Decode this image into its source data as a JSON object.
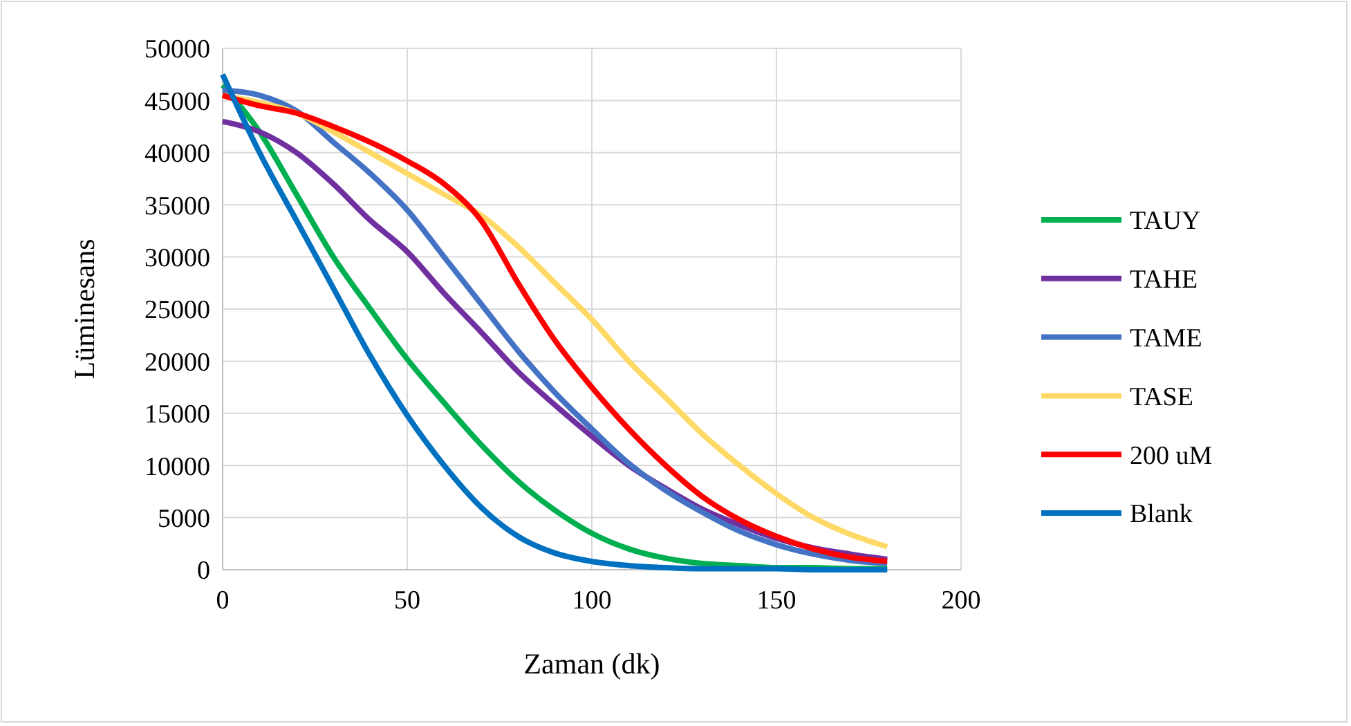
{
  "chart_data": {
    "type": "line",
    "xlabel": "Zaman (dk)",
    "ylabel": "Lüminesans",
    "x": [
      0,
      10,
      20,
      30,
      40,
      50,
      60,
      70,
      80,
      90,
      100,
      110,
      120,
      130,
      140,
      150,
      160,
      170,
      180
    ],
    "xlim": [
      0,
      200
    ],
    "xticks": [
      0,
      50,
      100,
      150,
      200
    ],
    "ylim": [
      0,
      50000
    ],
    "yticks": [
      0,
      5000,
      10000,
      15000,
      20000,
      25000,
      30000,
      35000,
      40000,
      45000,
      50000
    ],
    "grid": true,
    "legend": "right",
    "marker": "none",
    "line_style": "solid",
    "series": [
      {
        "name": "TAUY",
        "color": "#00b050",
        "values": [
          46500,
          42000,
          36000,
          30000,
          25000,
          20200,
          16000,
          12000,
          8500,
          5700,
          3500,
          2000,
          1100,
          600,
          400,
          200,
          200,
          100,
          100
        ]
      },
      {
        "name": "TAHE",
        "color": "#7030a0",
        "values": [
          43000,
          42000,
          40000,
          37000,
          33500,
          30500,
          26500,
          22800,
          19000,
          15800,
          12800,
          10000,
          7800,
          5800,
          4300,
          3000,
          2100,
          1500,
          1000
        ]
      },
      {
        "name": "TAME",
        "color": "#4472c4",
        "values": [
          46000,
          45500,
          44000,
          41000,
          38000,
          34500,
          30000,
          25500,
          21000,
          17000,
          13500,
          10200,
          7600,
          5500,
          3700,
          2400,
          1500,
          900,
          600
        ]
      },
      {
        "name": "TASE",
        "color": "#ffd966",
        "values": [
          45500,
          44800,
          43800,
          42000,
          40000,
          38000,
          36000,
          34000,
          31000,
          27500,
          24000,
          20000,
          16500,
          13000,
          10000,
          7300,
          5000,
          3400,
          2200
        ]
      },
      {
        "name": "200 uM",
        "color": "#ff0000",
        "values": [
          45500,
          44500,
          43800,
          42500,
          41000,
          39200,
          37000,
          33500,
          27500,
          22000,
          17500,
          13500,
          10000,
          7000,
          4800,
          3200,
          2000,
          1200,
          800
        ]
      },
      {
        "name": "Blank",
        "color": "#0070c0",
        "values": [
          47500,
          40000,
          33500,
          27000,
          20500,
          14800,
          10000,
          6000,
          3200,
          1600,
          800,
          400,
          200,
          100,
          100,
          100,
          0,
          0,
          0
        ]
      }
    ]
  }
}
